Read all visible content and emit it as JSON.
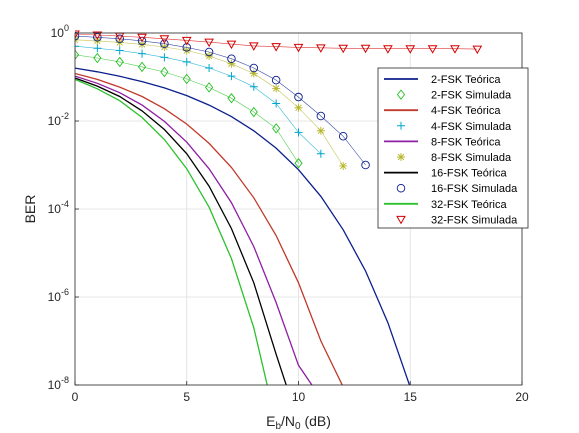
{
  "chart_data": {
    "type": "line",
    "xlabel": {
      "base": "E",
      "sub1": "b",
      "mid": "/N",
      "sub2": "0",
      "tail": " (dB)"
    },
    "ylabel": "BER",
    "xlim": [
      0,
      20
    ],
    "ylim": [
      1e-08,
      1
    ],
    "yscale": "log",
    "grid": true,
    "legend_position": "right",
    "x_ticks": [
      0,
      5,
      10,
      15,
      20
    ],
    "y_ticks": [
      {
        "base": "10",
        "exp": "0"
      },
      {
        "base": "10",
        "exp": "-2"
      },
      {
        "base": "10",
        "exp": "-4"
      },
      {
        "base": "10",
        "exp": "-6"
      },
      {
        "base": "10",
        "exp": "-8"
      }
    ],
    "series": [
      {
        "name": "2-FSK Teórica",
        "style": "line",
        "color": "#0b1f8c",
        "x": [
          0,
          1,
          2,
          3,
          4,
          5,
          6,
          7,
          8,
          9,
          10,
          11,
          12,
          13,
          14,
          15
        ],
        "y": [
          0.159,
          0.131,
          0.104,
          0.0786,
          0.0565,
          0.0377,
          0.023,
          0.0126,
          0.006,
          0.00242,
          0.000783,
          0.000193,
          3.36e-05,
          3.87e-06,
          2.61e-07,
          8.8e-09
        ]
      },
      {
        "name": "2-FSK Simulada",
        "style": "marker",
        "marker": "diamond",
        "color": "#22c022",
        "x": [
          0,
          1,
          2,
          3,
          4,
          5,
          6,
          7,
          8,
          9,
          10
        ],
        "y": [
          0.32,
          0.27,
          0.22,
          0.17,
          0.13,
          0.09,
          0.058,
          0.033,
          0.016,
          0.0068,
          0.0011
        ]
      },
      {
        "name": "4-FSK Teórica",
        "style": "line",
        "color": "#c0392b",
        "x": [
          0,
          1,
          2,
          3,
          4,
          5,
          6,
          7,
          8,
          9,
          10,
          11,
          12
        ],
        "y": [
          0.12,
          0.088,
          0.059,
          0.036,
          0.019,
          0.0085,
          0.0031,
          0.00088,
          0.00018,
          2.5e-05,
          2.1e-06,
          1e-07,
          9e-09
        ]
      },
      {
        "name": "4-FSK Simulada",
        "style": "marker",
        "marker": "plus",
        "color": "#00a6cf",
        "x": [
          0,
          1,
          2,
          3,
          4,
          5,
          6,
          7,
          8,
          9,
          10,
          11
        ],
        "y": [
          0.5,
          0.45,
          0.4,
          0.34,
          0.28,
          0.22,
          0.16,
          0.105,
          0.06,
          0.025,
          0.0055,
          0.0018
        ]
      },
      {
        "name": "8-FSK Teórica",
        "style": "line",
        "color": "#8e1ea3",
        "x": [
          0,
          1,
          2,
          3,
          4,
          5,
          6,
          7,
          8,
          9,
          10,
          10.6
        ],
        "y": [
          0.105,
          0.072,
          0.044,
          0.023,
          0.0098,
          0.0033,
          0.00082,
          0.00014,
          1.4e-05,
          7.5e-07,
          2.8e-08,
          1e-08
        ]
      },
      {
        "name": "8-FSK Simulada",
        "style": "marker",
        "marker": "asterisk",
        "color": "#b6b62b",
        "x": [
          0,
          1,
          2,
          3,
          4,
          5,
          6,
          7,
          8,
          9,
          10,
          11,
          12
        ],
        "y": [
          0.7,
          0.66,
          0.61,
          0.55,
          0.48,
          0.4,
          0.3,
          0.2,
          0.12,
          0.055,
          0.02,
          0.006,
          0.00095
        ]
      },
      {
        "name": "16-FSK Teórica",
        "style": "line",
        "color": "#000000",
        "x": [
          0,
          1,
          2,
          3,
          4,
          5,
          6,
          7,
          8,
          9,
          9.45
        ],
        "y": [
          0.095,
          0.062,
          0.036,
          0.017,
          0.0064,
          0.0018,
          0.00033,
          3.6e-05,
          2.1e-06,
          5e-08,
          1e-08
        ]
      },
      {
        "name": "16-FSK Simulada",
        "style": "marker",
        "marker": "circle",
        "color": "#0b1f8c",
        "x": [
          0,
          1,
          2,
          3,
          4,
          5,
          6,
          7,
          8,
          9,
          10,
          11,
          12,
          13
        ],
        "y": [
          0.85,
          0.8,
          0.74,
          0.66,
          0.57,
          0.47,
          0.37,
          0.26,
          0.16,
          0.085,
          0.035,
          0.013,
          0.0045,
          0.001
        ]
      },
      {
        "name": "32-FSK Teórica",
        "style": "line",
        "color": "#2cc02c",
        "x": [
          0,
          1,
          2,
          3,
          4,
          5,
          6,
          7,
          8,
          8.6
        ],
        "y": [
          0.088,
          0.054,
          0.029,
          0.012,
          0.0038,
          0.00082,
          0.00011,
          7.5e-06,
          2e-07,
          1e-08
        ]
      },
      {
        "name": "32-FSK Simulada",
        "style": "marker",
        "marker": "triangle-down",
        "color": "#d40000",
        "x": [
          0,
          1,
          2,
          3,
          4,
          5,
          6,
          7,
          8,
          9,
          10,
          11,
          12,
          13,
          14,
          15,
          16,
          17,
          18
        ],
        "y": [
          0.95,
          0.9,
          0.85,
          0.8,
          0.74,
          0.68,
          0.62,
          0.56,
          0.51,
          0.49,
          0.47,
          0.46,
          0.45,
          0.45,
          0.44,
          0.44,
          0.44,
          0.44,
          0.43
        ]
      }
    ]
  }
}
